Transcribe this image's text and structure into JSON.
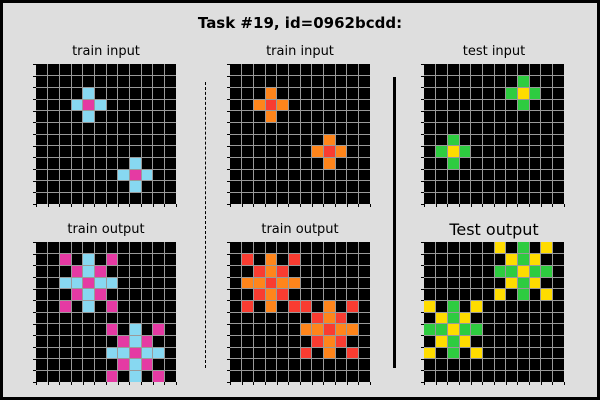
{
  "title": "Task #19, id=0962bcdd:",
  "colors": {
    "bg": "#000000",
    "blue": "#87d8f1",
    "magenta": "#e53aa3",
    "orange": "#ff851b",
    "red": "#f93c31",
    "green": "#2ecc40",
    "yellow": "#ffdc00",
    "gridline": "#9a9a9a"
  },
  "panels": [
    {
      "label": "train input",
      "rows": 12,
      "cols": 12,
      "cells": [
        [
          2,
          4,
          "blue"
        ],
        [
          3,
          3,
          "blue"
        ],
        [
          3,
          4,
          "magenta"
        ],
        [
          3,
          5,
          "blue"
        ],
        [
          4,
          4,
          "blue"
        ],
        [
          8,
          8,
          "blue"
        ],
        [
          9,
          7,
          "blue"
        ],
        [
          9,
          8,
          "magenta"
        ],
        [
          9,
          9,
          "blue"
        ],
        [
          10,
          8,
          "blue"
        ]
      ]
    },
    {
      "label": "train input",
      "rows": 12,
      "cols": 12,
      "cells": [
        [
          2,
          3,
          "orange"
        ],
        [
          3,
          2,
          "orange"
        ],
        [
          3,
          3,
          "red"
        ],
        [
          3,
          4,
          "orange"
        ],
        [
          4,
          3,
          "orange"
        ],
        [
          6,
          8,
          "orange"
        ],
        [
          7,
          7,
          "orange"
        ],
        [
          7,
          8,
          "red"
        ],
        [
          7,
          9,
          "orange"
        ],
        [
          8,
          8,
          "orange"
        ]
      ]
    },
    {
      "label": "test input",
      "rows": 12,
      "cols": 12,
      "cells": [
        [
          1,
          8,
          "green"
        ],
        [
          2,
          7,
          "green"
        ],
        [
          2,
          8,
          "yellow"
        ],
        [
          2,
          9,
          "green"
        ],
        [
          3,
          8,
          "green"
        ],
        [
          6,
          2,
          "green"
        ],
        [
          7,
          1,
          "green"
        ],
        [
          7,
          2,
          "yellow"
        ],
        [
          7,
          3,
          "green"
        ],
        [
          8,
          2,
          "green"
        ]
      ]
    },
    {
      "label": "train output",
      "rows": 12,
      "cols": 12,
      "cells": [
        [
          1,
          2,
          "magenta"
        ],
        [
          1,
          4,
          "blue"
        ],
        [
          1,
          6,
          "magenta"
        ],
        [
          2,
          3,
          "magenta"
        ],
        [
          2,
          4,
          "blue"
        ],
        [
          2,
          5,
          "magenta"
        ],
        [
          3,
          2,
          "blue"
        ],
        [
          3,
          3,
          "blue"
        ],
        [
          3,
          4,
          "magenta"
        ],
        [
          3,
          5,
          "blue"
        ],
        [
          3,
          6,
          "blue"
        ],
        [
          4,
          3,
          "magenta"
        ],
        [
          4,
          4,
          "blue"
        ],
        [
          4,
          5,
          "magenta"
        ],
        [
          5,
          2,
          "magenta"
        ],
        [
          5,
          4,
          "blue"
        ],
        [
          5,
          6,
          "magenta"
        ],
        [
          7,
          6,
          "magenta"
        ],
        [
          7,
          8,
          "blue"
        ],
        [
          7,
          10,
          "magenta"
        ],
        [
          8,
          7,
          "magenta"
        ],
        [
          8,
          8,
          "blue"
        ],
        [
          8,
          9,
          "magenta"
        ],
        [
          9,
          6,
          "blue"
        ],
        [
          9,
          7,
          "blue"
        ],
        [
          9,
          8,
          "magenta"
        ],
        [
          9,
          9,
          "blue"
        ],
        [
          9,
          10,
          "blue"
        ],
        [
          10,
          7,
          "magenta"
        ],
        [
          10,
          8,
          "blue"
        ],
        [
          10,
          9,
          "magenta"
        ],
        [
          11,
          6,
          "magenta"
        ],
        [
          11,
          8,
          "blue"
        ],
        [
          11,
          10,
          "magenta"
        ]
      ]
    },
    {
      "label": "train output",
      "rows": 12,
      "cols": 12,
      "cells": [
        [
          1,
          1,
          "red"
        ],
        [
          1,
          3,
          "orange"
        ],
        [
          1,
          5,
          "red"
        ],
        [
          2,
          2,
          "red"
        ],
        [
          2,
          3,
          "orange"
        ],
        [
          2,
          4,
          "red"
        ],
        [
          3,
          1,
          "orange"
        ],
        [
          3,
          2,
          "orange"
        ],
        [
          3,
          3,
          "red"
        ],
        [
          3,
          4,
          "orange"
        ],
        [
          3,
          5,
          "orange"
        ],
        [
          4,
          2,
          "red"
        ],
        [
          4,
          3,
          "orange"
        ],
        [
          4,
          4,
          "red"
        ],
        [
          5,
          1,
          "red"
        ],
        [
          5,
          3,
          "orange"
        ],
        [
          5,
          5,
          "red"
        ],
        [
          5,
          6,
          "red"
        ],
        [
          5,
          8,
          "orange"
        ],
        [
          5,
          10,
          "red"
        ],
        [
          6,
          7,
          "red"
        ],
        [
          6,
          8,
          "orange"
        ],
        [
          6,
          9,
          "red"
        ],
        [
          7,
          6,
          "orange"
        ],
        [
          7,
          7,
          "orange"
        ],
        [
          7,
          8,
          "red"
        ],
        [
          7,
          9,
          "orange"
        ],
        [
          7,
          10,
          "orange"
        ],
        [
          8,
          7,
          "red"
        ],
        [
          8,
          8,
          "orange"
        ],
        [
          8,
          9,
          "red"
        ],
        [
          9,
          6,
          "red"
        ],
        [
          9,
          8,
          "orange"
        ],
        [
          9,
          10,
          "red"
        ]
      ]
    },
    {
      "label": "Test output",
      "rows": 12,
      "cols": 12,
      "big": true,
      "cells": [
        [
          0,
          6,
          "yellow"
        ],
        [
          0,
          8,
          "green"
        ],
        [
          0,
          10,
          "yellow"
        ],
        [
          1,
          7,
          "yellow"
        ],
        [
          1,
          8,
          "green"
        ],
        [
          1,
          9,
          "yellow"
        ],
        [
          2,
          6,
          "green"
        ],
        [
          2,
          7,
          "green"
        ],
        [
          2,
          8,
          "yellow"
        ],
        [
          2,
          9,
          "green"
        ],
        [
          2,
          10,
          "green"
        ],
        [
          3,
          7,
          "yellow"
        ],
        [
          3,
          8,
          "green"
        ],
        [
          3,
          9,
          "yellow"
        ],
        [
          4,
          6,
          "yellow"
        ],
        [
          4,
          8,
          "green"
        ],
        [
          4,
          10,
          "yellow"
        ],
        [
          5,
          0,
          "yellow"
        ],
        [
          5,
          2,
          "green"
        ],
        [
          5,
          4,
          "yellow"
        ],
        [
          6,
          1,
          "yellow"
        ],
        [
          6,
          2,
          "green"
        ],
        [
          6,
          3,
          "yellow"
        ],
        [
          7,
          0,
          "green"
        ],
        [
          7,
          1,
          "green"
        ],
        [
          7,
          2,
          "yellow"
        ],
        [
          7,
          3,
          "green"
        ],
        [
          7,
          4,
          "green"
        ],
        [
          8,
          1,
          "yellow"
        ],
        [
          8,
          2,
          "green"
        ],
        [
          8,
          3,
          "yellow"
        ],
        [
          9,
          0,
          "yellow"
        ],
        [
          9,
          2,
          "green"
        ],
        [
          9,
          4,
          "yellow"
        ]
      ]
    }
  ]
}
